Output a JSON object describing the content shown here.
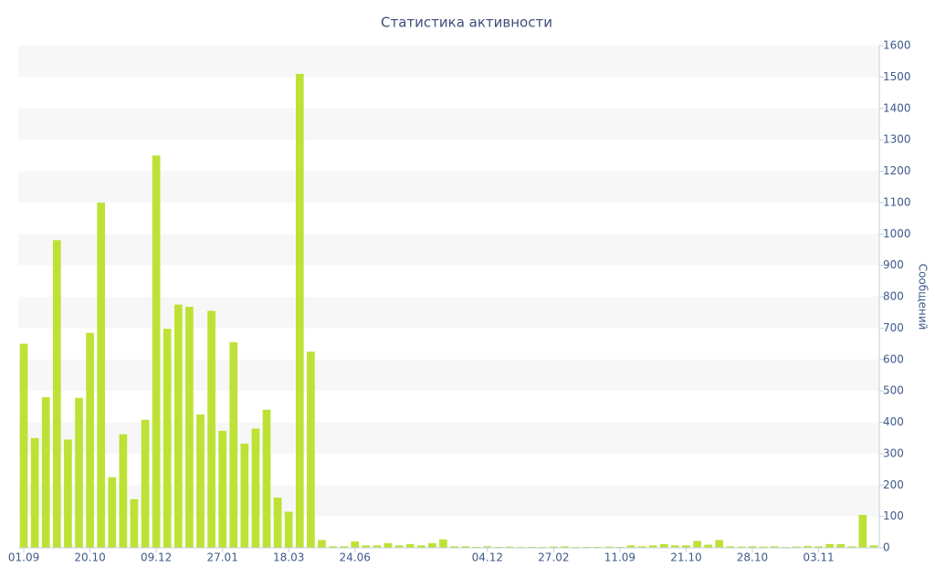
{
  "chart_data": {
    "type": "bar",
    "title": "Статистика активности",
    "y_label": "Сообщений",
    "categories": [
      "01.09",
      null,
      null,
      null,
      null,
      null,
      "20.10",
      null,
      null,
      null,
      null,
      null,
      "09.12",
      null,
      null,
      null,
      null,
      null,
      "27.01",
      null,
      null,
      null,
      null,
      null,
      "18.03",
      null,
      null,
      null,
      null,
      null,
      "24.06",
      null,
      null,
      null,
      null,
      null,
      null,
      null,
      null,
      null,
      null,
      null,
      "04.12",
      null,
      null,
      null,
      null,
      null,
      "27.02",
      null,
      null,
      null,
      null,
      null,
      "11.09",
      null,
      null,
      null,
      null,
      null,
      "21.10",
      null,
      null,
      null,
      null,
      null,
      "28.10",
      null,
      null,
      null,
      null,
      null,
      "03.11",
      null,
      null,
      null,
      null,
      null
    ],
    "values": [
      650,
      350,
      480,
      980,
      345,
      478,
      685,
      1100,
      225,
      362,
      155,
      408,
      1250,
      698,
      775,
      768,
      425,
      755,
      373,
      655,
      332,
      380,
      440,
      160,
      115,
      1510,
      625,
      25,
      5,
      5,
      20,
      8,
      8,
      15,
      8,
      12,
      8,
      15,
      27,
      5,
      5,
      3,
      5,
      3,
      4,
      3,
      3,
      3,
      4,
      5,
      3,
      3,
      3,
      4,
      3,
      8,
      5,
      8,
      12,
      8,
      8,
      22,
      10,
      25,
      5,
      4,
      5,
      4,
      5,
      3,
      4,
      6,
      5,
      12,
      12,
      5,
      105,
      8
    ],
    "color": "#bde235",
    "ylim": [
      0,
      1600
    ],
    "yticks": [
      0,
      100,
      200,
      300,
      400,
      500,
      600,
      700,
      800,
      900,
      1000,
      1100,
      1200,
      1300,
      1400,
      1500,
      1600
    ],
    "grid": "bands",
    "band_color": "#f7f7f7",
    "y_axis_side": "right"
  }
}
